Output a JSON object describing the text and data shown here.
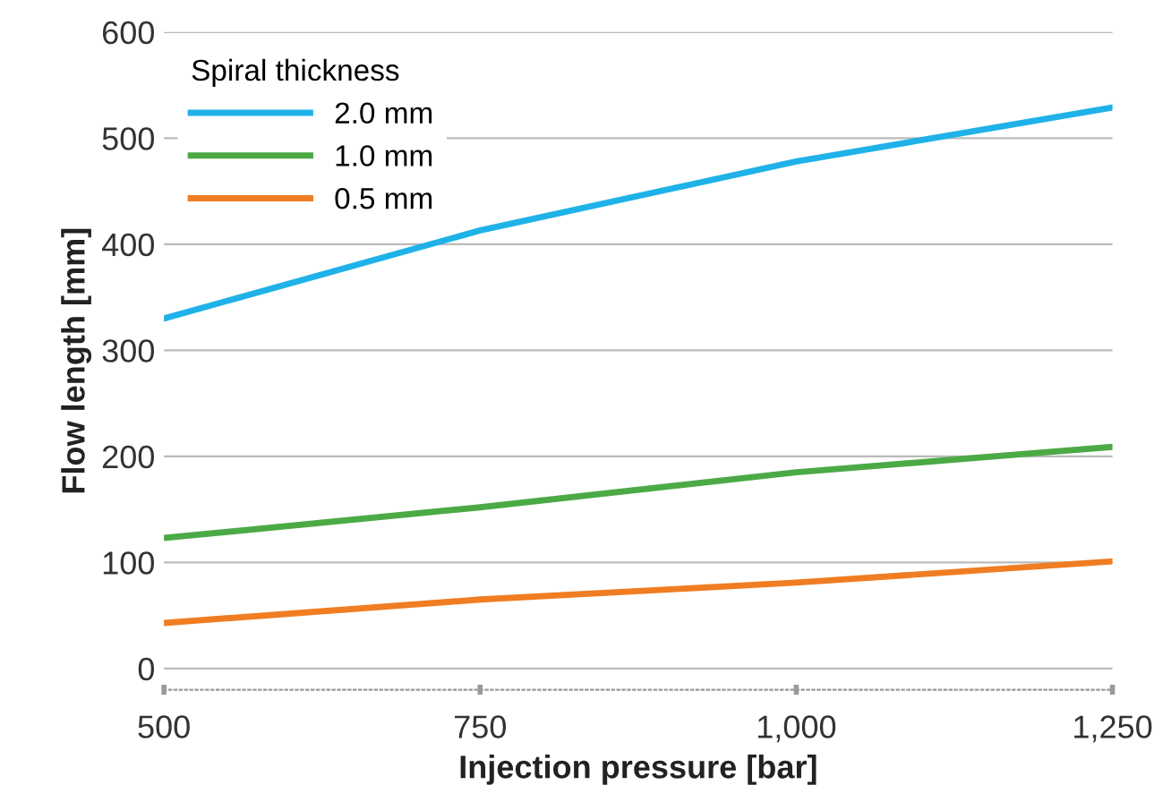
{
  "chart_data": {
    "type": "line",
    "xlabel": "Injection pressure [bar]",
    "ylabel": "Flow length [mm]",
    "legend_title": "Spiral thickness",
    "x": [
      500,
      750,
      1000,
      1250
    ],
    "series": [
      {
        "name": "2.0 mm",
        "color": "#1fb2e8",
        "values": [
          330,
          413,
          478,
          529
        ]
      },
      {
        "name": "1.0 mm",
        "color": "#4caa46",
        "values": [
          123,
          152,
          185,
          209
        ]
      },
      {
        "name": "0.5 mm",
        "color": "#f07d22",
        "values": [
          43,
          65,
          81,
          101
        ]
      }
    ],
    "xlim": [
      500,
      1250
    ],
    "xticks": [
      500,
      750,
      {
        "value": 1000,
        "label": "1,000"
      },
      {
        "value": 1250,
        "label": "1,250"
      }
    ],
    "ylim": [
      -20,
      600
    ],
    "yticks": [
      0,
      100,
      200,
      300,
      400,
      500,
      600
    ],
    "grid": "y",
    "legend": "top left",
    "marker": "none",
    "line_style": "solid"
  }
}
